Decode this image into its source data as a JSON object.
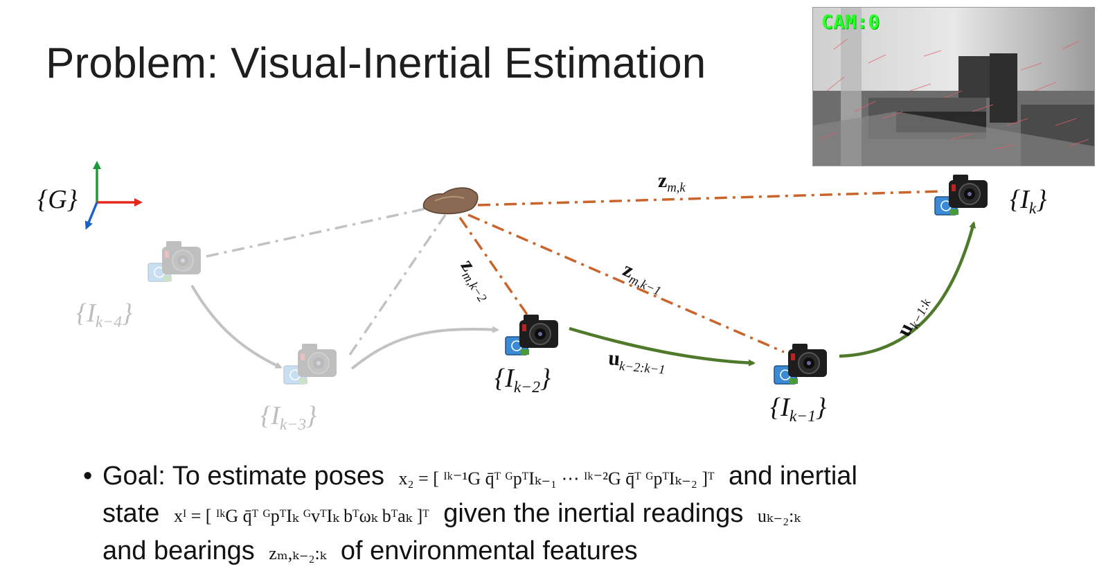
{
  "title": "Problem: Visual-Inertial Estimation",
  "cam_view": {
    "label": "CAM:0"
  },
  "global_frame": {
    "label_pre": "{",
    "label_mid": "G",
    "label_post": "}"
  },
  "frames": {
    "k": {
      "pre": "{I",
      "sub": "k",
      "post": "}"
    },
    "k1": {
      "pre": "{I",
      "sub": "k−1",
      "post": "}"
    },
    "k2": {
      "pre": "{I",
      "sub": "k−2",
      "post": "}"
    },
    "k3": {
      "pre": "{I",
      "sub": "k−3",
      "post": "}"
    },
    "k4": {
      "pre": "{I",
      "sub": "k−4",
      "post": "}"
    }
  },
  "measurements": {
    "z_k": {
      "base": "z",
      "sub": "m,k"
    },
    "z_k1": {
      "base": "z",
      "sub": "m,k−1"
    },
    "z_k2": {
      "base": "z",
      "sub": "m,k−2"
    }
  },
  "inertial": {
    "u_k2k1": {
      "base": "u",
      "sub": "k−2:k−1"
    },
    "u_k1k": {
      "base": "u",
      "sub": "k−1:k"
    }
  },
  "bullet": {
    "line1_pre": "Goal: To estimate poses",
    "line1_mid": "and inertial",
    "line2_pre": "state",
    "line2_mid": "given the inertial readings",
    "line3_pre": "and bearings",
    "line3_post": "of environmental features",
    "x_c_math": "x₂ = [ ᴵᵏ⁻¹G q̄ᵀ  ᴳpᵀIₖ₋₁  ⋯  ᴵᵏ⁻²G q̄ᵀ  ᴳpᵀIₖ₋₂ ]ᵀ",
    "x_i_math": "xᴵ = [ ᴵᵏG q̄ᵀ  ᴳpᵀIₖ  ᴳvᵀIₖ  bᵀωₖ  bᵀaₖ ]ᵀ",
    "u_math": "uₖ₋₂:ₖ",
    "z_math": "zₘ,ₖ₋₂:ₖ"
  },
  "colors": {
    "orange": "#c9652b",
    "green": "#4f7a2c",
    "gray": "#c2c2c2",
    "axis_green": "#1f9a3a",
    "axis_red": "#e5281c",
    "axis_blue": "#1a62c6"
  }
}
